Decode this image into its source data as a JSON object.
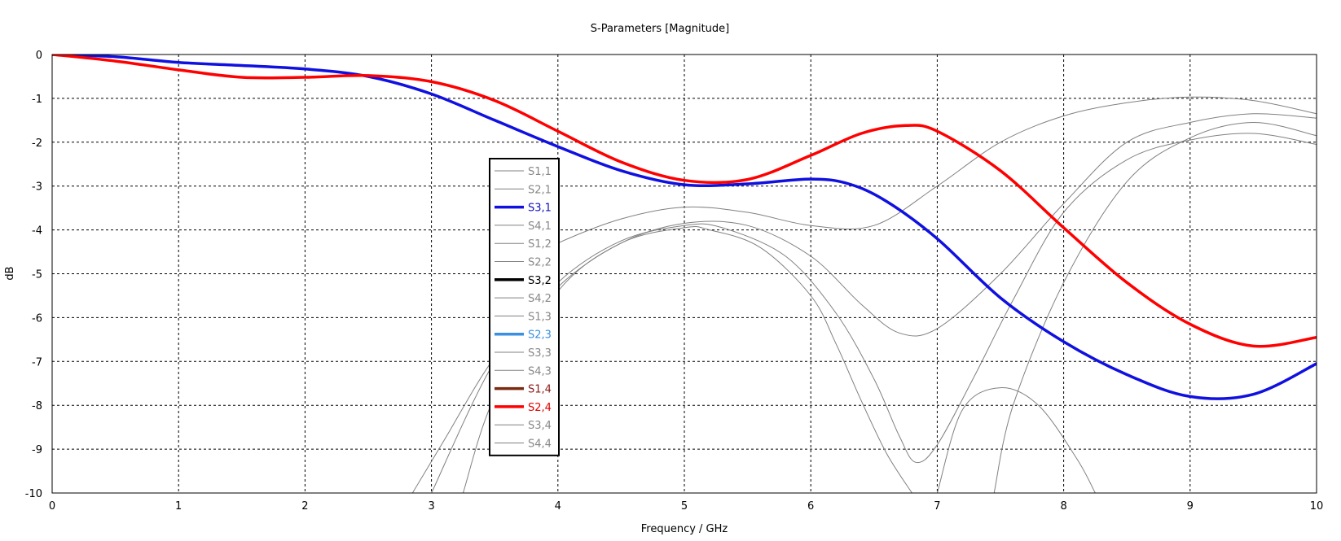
{
  "chart_data": {
    "type": "line",
    "title": "S-Parameters [Magnitude]",
    "xlabel": "Frequency / GHz",
    "ylabel": "dB",
    "xlim": [
      0,
      10
    ],
    "ylim": [
      -10,
      0
    ],
    "xticks": [
      0,
      1,
      2,
      3,
      4,
      5,
      6,
      7,
      8,
      9,
      10
    ],
    "yticks": [
      0,
      -1,
      -2,
      -3,
      -4,
      -5,
      -6,
      -7,
      -8,
      -9,
      -10
    ],
    "grid": true,
    "legend_position": "center-left",
    "series": [
      {
        "name": "S1,1",
        "color": "#808080",
        "highlight": false,
        "x": [
          2.85,
          3.1,
          3.5,
          4.0,
          4.5,
          5.0,
          5.3,
          5.8,
          6.2,
          6.5,
          6.7,
          6.83,
          7.0,
          7.3,
          7.6,
          8.0,
          8.5,
          9.0,
          9.5,
          10.0
        ],
        "y": [
          -10,
          -8.8,
          -6.9,
          -5.2,
          -4.25,
          -3.9,
          -3.95,
          -4.6,
          -5.9,
          -7.4,
          -8.7,
          -9.3,
          -8.9,
          -7.3,
          -5.6,
          -3.6,
          -2.4,
          -1.95,
          -1.8,
          -2.05
        ]
      },
      {
        "name": "S2,1",
        "color": "#808080",
        "highlight": false,
        "x": [
          3.25,
          3.5,
          4.0,
          4.5,
          5.0,
          5.2,
          5.6,
          6.0,
          6.2,
          6.4,
          6.6,
          6.8
        ],
        "y": [
          -10,
          -7.8,
          -5.4,
          -4.3,
          -3.95,
          -4.0,
          -4.4,
          -5.5,
          -6.6,
          -7.9,
          -9.1,
          -10
        ]
      },
      {
        "name": "S3,1",
        "color": "#1010E0",
        "highlight": true,
        "x": [
          0,
          0.5,
          1,
          1.5,
          2,
          2.5,
          3,
          3.5,
          4,
          4.5,
          5,
          5.5,
          6,
          6.3,
          6.6,
          7,
          7.5,
          8,
          8.5,
          9,
          9.5,
          10
        ],
        "y": [
          0,
          -0.05,
          -0.18,
          -0.25,
          -0.33,
          -0.5,
          -0.9,
          -1.5,
          -2.1,
          -2.65,
          -2.97,
          -2.95,
          -2.84,
          -2.95,
          -3.35,
          -4.2,
          -5.55,
          -6.55,
          -7.3,
          -7.8,
          -7.75,
          -7.05
        ]
      },
      {
        "name": "S4,1",
        "color": "#808080",
        "highlight": false,
        "x": [
          3.0,
          3.5,
          4.0,
          4.5,
          5.0,
          5.5,
          6.0,
          6.4,
          6.7,
          7.0,
          7.5,
          8.0,
          8.5,
          9.0,
          9.5,
          10.0
        ],
        "y": [
          -10,
          -7.0,
          -5.3,
          -4.3,
          -3.85,
          -3.9,
          -4.6,
          -5.7,
          -6.35,
          -6.25,
          -5.0,
          -3.4,
          -2.0,
          -1.55,
          -1.35,
          -1.45
        ]
      },
      {
        "name": "S1,2",
        "color": "#808080",
        "highlight": false,
        "x": [
          3.6,
          4.0,
          4.5,
          5.0,
          5.5,
          6.0,
          6.5,
          7.0,
          7.5,
          8.0,
          8.5,
          9.0,
          9.5,
          10.0
        ],
        "y": [
          -4.9,
          -4.3,
          -3.75,
          -3.48,
          -3.6,
          -3.9,
          -3.9,
          -3.0,
          -2.0,
          -1.4,
          -1.1,
          -0.97,
          -1.05,
          -1.35
        ]
      },
      {
        "name": "S2,2",
        "color": "#808080",
        "highlight": false,
        "x": [
          7.45,
          7.6,
          8.0,
          8.5,
          9.0,
          9.5,
          10.0
        ],
        "y": [
          -10,
          -8.0,
          -5.2,
          -2.9,
          -1.9,
          -1.55,
          -1.85
        ]
      },
      {
        "name": "S4,2",
        "color": "#808080",
        "highlight": false,
        "x": [
          7.0,
          7.2,
          7.5,
          7.8,
          8.1,
          8.25
        ],
        "y": [
          -10,
          -8.1,
          -7.6,
          -8.0,
          -9.2,
          -10
        ]
      },
      {
        "name": "S2,4",
        "color": "#FF0000",
        "highlight": true,
        "x": [
          0,
          0.5,
          1,
          1.5,
          2,
          2.5,
          3,
          3.5,
          4,
          4.5,
          5,
          5.5,
          6,
          6.4,
          6.75,
          7,
          7.5,
          8,
          8.5,
          9,
          9.5,
          10
        ],
        "y": [
          0,
          -0.15,
          -0.35,
          -0.52,
          -0.52,
          -0.48,
          -0.62,
          -1.05,
          -1.75,
          -2.45,
          -2.87,
          -2.85,
          -2.3,
          -1.8,
          -1.62,
          -1.75,
          -2.65,
          -3.95,
          -5.2,
          -6.15,
          -6.65,
          -6.45
        ]
      }
    ],
    "legend": [
      {
        "label": "S1,1",
        "color": "#808080",
        "bold": false,
        "text_color": "#888888"
      },
      {
        "label": "S2,1",
        "color": "#808080",
        "bold": false,
        "text_color": "#888888"
      },
      {
        "label": "S3,1",
        "color": "#1010E0",
        "bold": true,
        "text_color": "#1010C0"
      },
      {
        "label": "S4,1",
        "color": "#808080",
        "bold": false,
        "text_color": "#888888"
      },
      {
        "label": "S1,2",
        "color": "#808080",
        "bold": false,
        "text_color": "#888888"
      },
      {
        "label": "S2,2",
        "color": "#808080",
        "bold": false,
        "text_color": "#888888"
      },
      {
        "label": "S3,2",
        "color": "#000000",
        "bold": true,
        "text_color": "#000000"
      },
      {
        "label": "S4,2",
        "color": "#808080",
        "bold": false,
        "text_color": "#888888"
      },
      {
        "label": "S1,3",
        "color": "#808080",
        "bold": false,
        "text_color": "#888888"
      },
      {
        "label": "S2,3",
        "color": "#3A8FE0",
        "bold": true,
        "text_color": "#3A8FE0"
      },
      {
        "label": "S3,3",
        "color": "#808080",
        "bold": false,
        "text_color": "#888888"
      },
      {
        "label": "S4,3",
        "color": "#808080",
        "bold": false,
        "text_color": "#888888"
      },
      {
        "label": "S1,4",
        "color": "#7A2A10",
        "bold": true,
        "text_color": "#8B1A1A"
      },
      {
        "label": "S2,4",
        "color": "#FF0000",
        "bold": true,
        "text_color": "#E00000"
      },
      {
        "label": "S3,4",
        "color": "#808080",
        "bold": false,
        "text_color": "#888888"
      },
      {
        "label": "S4,4",
        "color": "#808080",
        "bold": false,
        "text_color": "#888888"
      }
    ]
  }
}
